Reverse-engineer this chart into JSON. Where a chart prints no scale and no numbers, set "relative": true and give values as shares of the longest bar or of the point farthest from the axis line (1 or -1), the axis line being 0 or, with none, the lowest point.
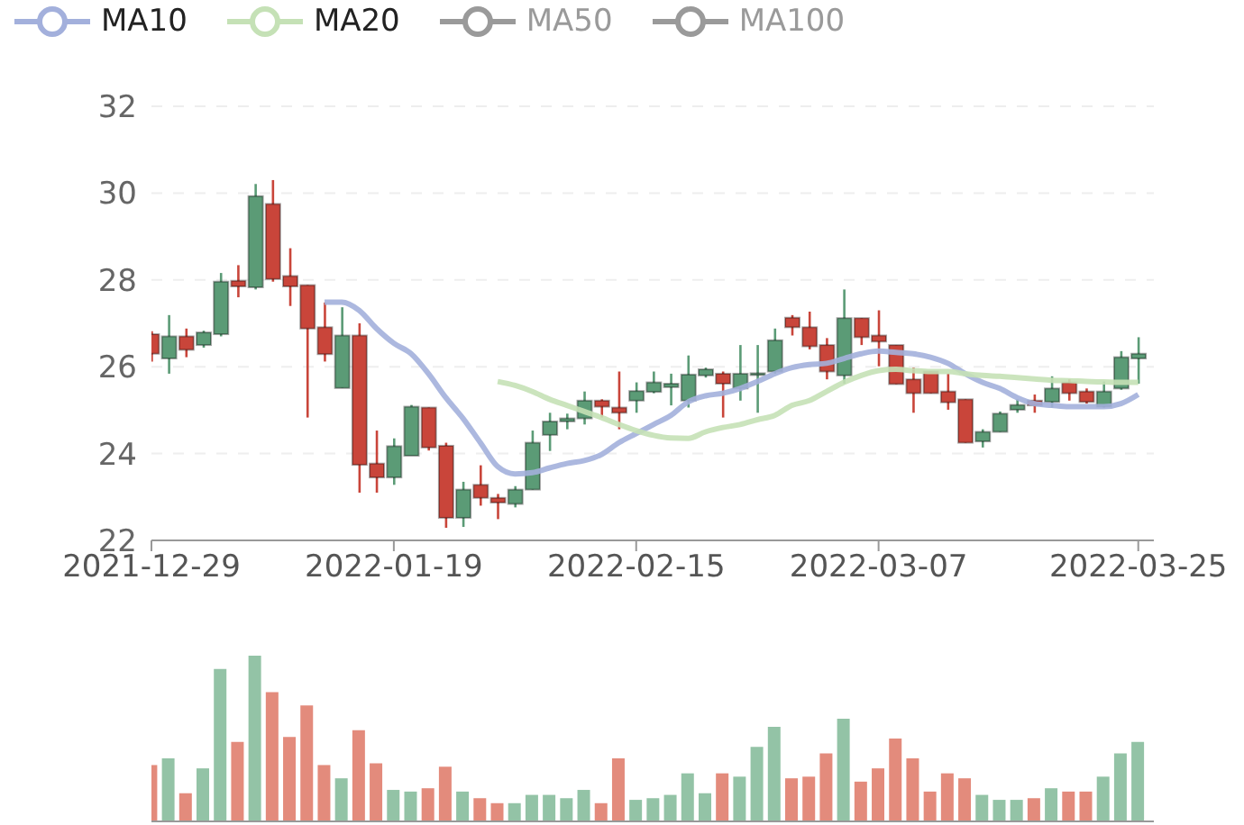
{
  "chart_data": [
    {
      "type": "candlestick",
      "categories": [
        "2021-12-29",
        null,
        null,
        null,
        null,
        null,
        null,
        null,
        null,
        null,
        null,
        null,
        null,
        null,
        "2022-01-19",
        null,
        null,
        null,
        null,
        null,
        null,
        null,
        null,
        null,
        null,
        null,
        null,
        null,
        "2022-02-15",
        null,
        null,
        null,
        null,
        null,
        null,
        null,
        null,
        null,
        null,
        null,
        null,
        null,
        "2022-03-07",
        null,
        null,
        null,
        null,
        null,
        null,
        null,
        null,
        null,
        null,
        null,
        null,
        null,
        null,
        "2022-03-25"
      ],
      "ohlc": [
        [
          26.75,
          26.82,
          26.12,
          26.3
        ],
        [
          26.19,
          27.19,
          25.84,
          26.7
        ],
        [
          26.7,
          26.88,
          26.22,
          26.39
        ],
        [
          26.5,
          26.83,
          26.44,
          26.79
        ],
        [
          26.75,
          28.16,
          26.7,
          27.96
        ],
        [
          27.98,
          28.34,
          27.6,
          27.85
        ],
        [
          27.83,
          30.21,
          27.78,
          29.93
        ],
        [
          29.75,
          30.3,
          27.96,
          28.02
        ],
        [
          28.09,
          28.73,
          27.4,
          27.85
        ],
        [
          27.88,
          27.88,
          24.83,
          26.88
        ],
        [
          26.91,
          27.48,
          26.12,
          26.29
        ],
        [
          25.51,
          27.37,
          25.51,
          26.72
        ],
        [
          26.72,
          27.0,
          23.1,
          23.74
        ],
        [
          23.77,
          24.53,
          23.1,
          23.45
        ],
        [
          23.45,
          24.35,
          23.28,
          24.17
        ],
        [
          23.95,
          25.12,
          23.95,
          25.08
        ],
        [
          25.06,
          25.06,
          24.07,
          24.14
        ],
        [
          24.18,
          24.25,
          22.29,
          22.52
        ],
        [
          22.52,
          23.35,
          22.31,
          23.17
        ],
        [
          23.28,
          23.73,
          22.8,
          22.98
        ],
        [
          22.98,
          23.07,
          22.49,
          22.87
        ],
        [
          22.84,
          23.25,
          22.76,
          23.17
        ],
        [
          23.17,
          24.53,
          23.17,
          24.25
        ],
        [
          24.43,
          24.94,
          24.06,
          24.74
        ],
        [
          24.74,
          24.92,
          24.56,
          24.81
        ],
        [
          24.81,
          25.43,
          24.67,
          25.22
        ],
        [
          25.22,
          25.25,
          24.83,
          25.08
        ],
        [
          25.06,
          25.89,
          24.56,
          24.94
        ],
        [
          25.22,
          25.64,
          24.94,
          25.44
        ],
        [
          25.42,
          25.89,
          25.39,
          25.64
        ],
        [
          25.53,
          25.84,
          25.11,
          25.61
        ],
        [
          25.22,
          26.26,
          25.06,
          25.82
        ],
        [
          25.8,
          25.98,
          25.75,
          25.94
        ],
        [
          25.84,
          25.89,
          24.83,
          25.61
        ],
        [
          25.5,
          26.5,
          25.22,
          25.84
        ],
        [
          25.82,
          26.5,
          24.94,
          25.85
        ],
        [
          25.89,
          26.88,
          25.84,
          26.61
        ],
        [
          27.13,
          27.19,
          26.72,
          26.91
        ],
        [
          26.91,
          27.27,
          26.4,
          26.47
        ],
        [
          26.5,
          26.66,
          25.71,
          25.89
        ],
        [
          25.8,
          27.78,
          25.61,
          27.12
        ],
        [
          27.12,
          27.12,
          26.5,
          26.68
        ],
        [
          26.72,
          27.3,
          26.01,
          26.58
        ],
        [
          26.5,
          26.5,
          25.6,
          25.6
        ],
        [
          25.71,
          25.98,
          24.94,
          25.39
        ],
        [
          25.89,
          25.89,
          25.39,
          25.39
        ],
        [
          25.43,
          25.84,
          25.01,
          25.18
        ],
        [
          25.25,
          25.25,
          24.25,
          24.25
        ],
        [
          24.28,
          24.56,
          24.14,
          24.5
        ],
        [
          24.5,
          24.97,
          24.5,
          24.92
        ],
        [
          25.01,
          25.25,
          24.94,
          25.12
        ],
        [
          25.22,
          25.36,
          24.94,
          25.11
        ],
        [
          25.19,
          25.78,
          25.06,
          25.5
        ],
        [
          25.64,
          25.71,
          25.22,
          25.39
        ],
        [
          25.43,
          25.5,
          25.15,
          25.19
        ],
        [
          25.08,
          25.66,
          25.06,
          25.43
        ],
        [
          25.5,
          26.36,
          25.47,
          26.22
        ],
        [
          26.19,
          26.68,
          25.61,
          26.3
        ]
      ],
      "colors": [
        "#c9453a",
        "#5b9b76",
        "#c9453a",
        "#5b9b76",
        "#5b9b76",
        "#c9453a",
        "#5b9b76",
        "#c9453a",
        "#c9453a",
        "#c9453a",
        "#c9453a",
        "#5b9b76",
        "#c9453a",
        "#c9453a",
        "#5b9b76",
        "#5b9b76",
        "#c9453a",
        "#c9453a",
        "#5b9b76",
        "#c9453a",
        "#c9453a",
        "#5b9b76",
        "#5b9b76",
        "#5b9b76",
        "#5b9b76",
        "#5b9b76",
        "#c9453a",
        "#c9453a",
        "#5b9b76",
        "#5b9b76",
        "#5b9b76",
        "#5b9b76",
        "#5b9b76",
        "#c9453a",
        "#5b9b76",
        "#5b9b76",
        "#5b9b76",
        "#c9453a",
        "#c9453a",
        "#c9453a",
        "#5b9b76",
        "#c9453a",
        "#c9453a",
        "#c9453a",
        "#c9453a",
        "#c9453a",
        "#c9453a",
        "#c9453a",
        "#5b9b76",
        "#5b9b76",
        "#5b9b76",
        "#c9453a",
        "#5b9b76",
        "#c9453a",
        "#c9453a",
        "#5b9b76",
        "#5b9b76",
        "#5b9b76"
      ],
      "series": [
        {
          "type": "line",
          "name": "MA10",
          "color": "#a3b0dc",
          "values": [
            null,
            null,
            null,
            null,
            null,
            null,
            null,
            null,
            null,
            null,
            27.49,
            27.49,
            27.3,
            26.88,
            26.54,
            26.3,
            25.84,
            25.29,
            24.81,
            24.25,
            23.7,
            23.53,
            23.56,
            23.67,
            23.77,
            23.84,
            23.98,
            24.25,
            24.46,
            24.67,
            24.88,
            25.19,
            25.33,
            25.39,
            25.5,
            25.66,
            25.84,
            25.98,
            26.05,
            26.08,
            26.19,
            26.3,
            26.36,
            26.33,
            26.3,
            26.22,
            26.08,
            25.84,
            25.64,
            25.5,
            25.29,
            25.15,
            25.11,
            25.08,
            25.08,
            25.08,
            25.15,
            25.36
          ]
        },
        {
          "type": "line",
          "name": "MA20",
          "color": "#c5e1b6",
          "values": [
            null,
            null,
            null,
            null,
            null,
            null,
            null,
            null,
            null,
            null,
            null,
            null,
            null,
            null,
            null,
            null,
            null,
            null,
            null,
            null,
            25.66,
            25.57,
            25.43,
            25.25,
            25.11,
            24.97,
            24.83,
            24.67,
            24.53,
            24.42,
            24.36,
            24.35,
            24.5,
            24.6,
            24.67,
            24.78,
            24.88,
            25.11,
            25.22,
            25.43,
            25.64,
            25.8,
            25.91,
            25.94,
            25.91,
            25.89,
            25.89,
            25.84,
            25.8,
            25.78,
            25.75,
            25.72,
            25.69,
            25.68,
            25.66,
            25.65,
            25.64,
            25.64
          ]
        },
        {
          "type": "line",
          "name": "MA50",
          "color": "#9a9a9a",
          "values": [
            null,
            null,
            null,
            null,
            null,
            null,
            null,
            null,
            null,
            null,
            null,
            null,
            null,
            null,
            null,
            null,
            null,
            null,
            null,
            null,
            null,
            null,
            null,
            null,
            null,
            null,
            null,
            null,
            null,
            null,
            null,
            null,
            null,
            null,
            null,
            null,
            null,
            null,
            null,
            null,
            null,
            null,
            null,
            null,
            null,
            null,
            null,
            null,
            null,
            null,
            null,
            null,
            null,
            null,
            null,
            null,
            null,
            null
          ]
        },
        {
          "type": "line",
          "name": "MA100",
          "color": "#9a9a9a",
          "values": [
            null,
            null,
            null,
            null,
            null,
            null,
            null,
            null,
            null,
            null,
            null,
            null,
            null,
            null,
            null,
            null,
            null,
            null,
            null,
            null,
            null,
            null,
            null,
            null,
            null,
            null,
            null,
            null,
            null,
            null,
            null,
            null,
            null,
            null,
            null,
            null,
            null,
            null,
            null,
            null,
            null,
            null,
            null,
            null,
            null,
            null,
            null,
            null,
            null,
            null,
            null,
            null,
            null,
            null,
            null,
            null,
            null,
            null
          ]
        }
      ],
      "ylim": [
        22,
        32
      ],
      "yticks": [
        22,
        24,
        26,
        28,
        30,
        32
      ],
      "grid": "y",
      "legend": "top left"
    },
    {
      "type": "bar",
      "relative": true,
      "tick_labels": false,
      "categories": [
        null,
        null,
        null,
        null,
        null,
        null,
        null,
        null,
        null,
        null,
        null,
        null,
        null,
        null,
        null,
        null,
        null,
        null,
        null,
        null,
        null,
        null,
        null,
        null,
        null,
        null,
        null,
        null,
        null,
        null,
        null,
        null,
        null,
        null,
        null,
        null,
        null,
        null,
        null,
        null,
        null,
        null,
        null,
        null,
        null,
        null,
        null,
        null,
        null,
        null,
        null,
        null,
        null,
        null,
        null,
        null,
        null,
        null
      ],
      "values": [
        0.34,
        0.38,
        0.17,
        0.32,
        0.92,
        0.48,
        1,
        0.78,
        0.51,
        0.7,
        0.34,
        0.26,
        0.55,
        0.35,
        0.19,
        0.18,
        0.2,
        0.33,
        0.18,
        0.14,
        0.11,
        0.11,
        0.16,
        0.16,
        0.14,
        0.19,
        0.11,
        0.38,
        0.13,
        0.14,
        0.16,
        0.29,
        0.17,
        0.29,
        0.27,
        0.45,
        0.57,
        0.26,
        0.27,
        0.41,
        0.62,
        0.24,
        0.32,
        0.5,
        0.38,
        0.18,
        0.29,
        0.26,
        0.16,
        0.13,
        0.13,
        0.14,
        0.2,
        0.18,
        0.18,
        0.27,
        0.41,
        0.48
      ],
      "colors": [
        "#e38b7c",
        "#93c3a6",
        "#e38b7c",
        "#93c3a6",
        "#93c3a6",
        "#e38b7c",
        "#93c3a6",
        "#e38b7c",
        "#e38b7c",
        "#e38b7c",
        "#e38b7c",
        "#93c3a6",
        "#e38b7c",
        "#e38b7c",
        "#93c3a6",
        "#93c3a6",
        "#e38b7c",
        "#e38b7c",
        "#93c3a6",
        "#e38b7c",
        "#e38b7c",
        "#93c3a6",
        "#93c3a6",
        "#93c3a6",
        "#93c3a6",
        "#93c3a6",
        "#e38b7c",
        "#e38b7c",
        "#93c3a6",
        "#93c3a6",
        "#93c3a6",
        "#93c3a6",
        "#93c3a6",
        "#e38b7c",
        "#93c3a6",
        "#93c3a6",
        "#93c3a6",
        "#e38b7c",
        "#e38b7c",
        "#e38b7c",
        "#93c3a6",
        "#e38b7c",
        "#e38b7c",
        "#e38b7c",
        "#e38b7c",
        "#e38b7c",
        "#e38b7c",
        "#e38b7c",
        "#93c3a6",
        "#93c3a6",
        "#93c3a6",
        "#e38b7c",
        "#93c3a6",
        "#e38b7c",
        "#e38b7c",
        "#93c3a6",
        "#93c3a6",
        "#93c3a6"
      ]
    }
  ]
}
